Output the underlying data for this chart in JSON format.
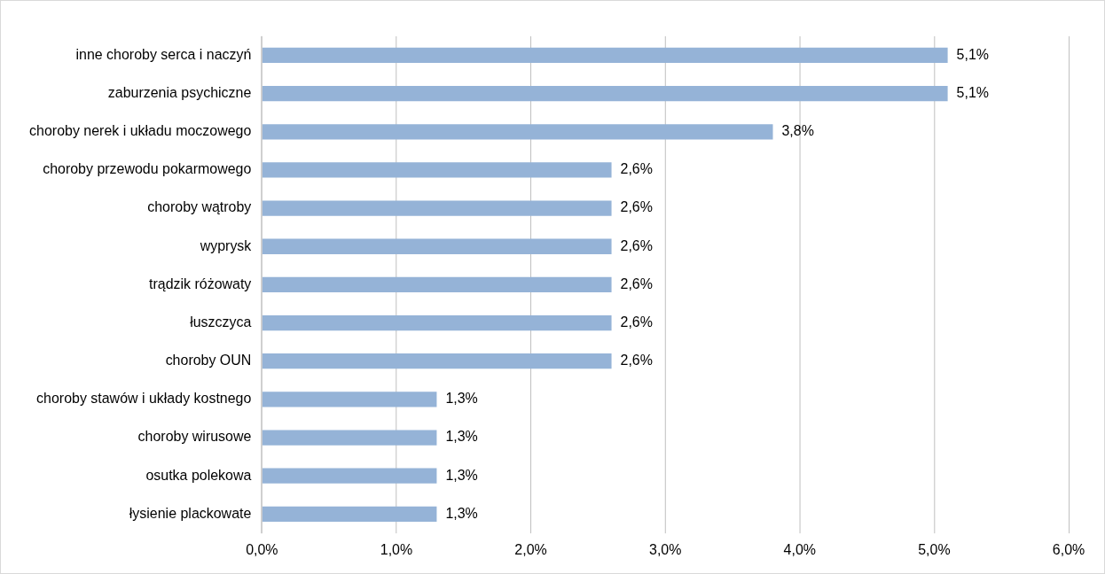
{
  "chart_data": {
    "type": "bar",
    "orientation": "horizontal",
    "categories": [
      "inne choroby serca i naczyń",
      "zaburzenia psychiczne",
      "choroby nerek i układu moczowego",
      "choroby przewodu pokarmowego",
      "choroby wątroby",
      "wyprysk",
      "trądzik różowaty",
      "łuszczyca",
      "choroby OUN",
      "choroby stawów i układy kostnego",
      "choroby wirusowe",
      "osutka polekowa",
      "łysienie plackowate"
    ],
    "values": [
      5.1,
      5.1,
      3.8,
      2.6,
      2.6,
      2.6,
      2.6,
      2.6,
      2.6,
      1.3,
      1.3,
      1.3,
      1.3
    ],
    "value_labels": [
      "5,1%",
      "5,1%",
      "3,8%",
      "2,6%",
      "2,6%",
      "2,6%",
      "2,6%",
      "2,6%",
      "2,6%",
      "1,3%",
      "1,3%",
      "1,3%",
      "1,3%"
    ],
    "color": "#95b3d7",
    "xlim": [
      0,
      6
    ],
    "xticks": [
      {
        "value": 0,
        "label": "0,0%"
      },
      {
        "value": 1,
        "label": "1,0%"
      },
      {
        "value": 2,
        "label": "2,0%"
      },
      {
        "value": 3,
        "label": "3,0%"
      },
      {
        "value": 4,
        "label": "4,0%"
      },
      {
        "value": 5,
        "label": "5,0%"
      },
      {
        "value": 6,
        "label": "6,0%"
      }
    ],
    "grid": "x",
    "legend": false
  }
}
